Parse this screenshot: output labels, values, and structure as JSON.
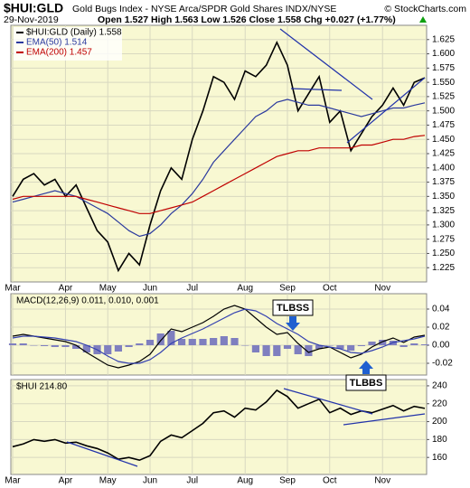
{
  "chart_data": [
    {
      "type": "line",
      "title": "$HUI:GLD",
      "subtitle": "Gold Bugs Index - NYSE Arca/SPDR Gold Shares INDX/NYSE",
      "credit": "© StockCharts.com",
      "date": "29-Nov-2019",
      "ohlc": "Open 1.527  High 1.563  Low 1.526  Close 1.558  Chg +0.027 (+1.77%)",
      "categories": [
        "Mar",
        null,
        null,
        null,
        null,
        "Apr",
        null,
        null,
        null,
        "May",
        null,
        null,
        null,
        "Jun",
        null,
        null,
        null,
        "Jul",
        null,
        null,
        null,
        null,
        "Aug",
        null,
        null,
        null,
        "Sep",
        null,
        null,
        null,
        "Oct",
        null,
        null,
        null,
        null,
        "Nov",
        null,
        null,
        null,
        null
      ],
      "series": [
        {
          "name": "$HUI:GLD (Daily) 1.558",
          "color": "#000000",
          "values": [
            1.35,
            1.38,
            1.39,
            1.37,
            1.38,
            1.35,
            1.37,
            1.33,
            1.29,
            1.27,
            1.22,
            1.25,
            1.23,
            1.3,
            1.36,
            1.4,
            1.38,
            1.45,
            1.5,
            1.56,
            1.55,
            1.52,
            1.57,
            1.56,
            1.58,
            1.62,
            1.58,
            1.5,
            1.53,
            1.56,
            1.48,
            1.5,
            1.43,
            1.46,
            1.49,
            1.51,
            1.54,
            1.51,
            1.55,
            1.558
          ]
        },
        {
          "name": "EMA(50) 1.514",
          "color": "#2b3a9e",
          "values": [
            1.34,
            1.345,
            1.35,
            1.355,
            1.36,
            1.355,
            1.35,
            1.34,
            1.33,
            1.32,
            1.305,
            1.29,
            1.28,
            1.285,
            1.3,
            1.32,
            1.335,
            1.355,
            1.38,
            1.41,
            1.43,
            1.45,
            1.47,
            1.49,
            1.5,
            1.515,
            1.52,
            1.515,
            1.51,
            1.51,
            1.505,
            1.5,
            1.495,
            1.49,
            1.495,
            1.5,
            1.505,
            1.505,
            1.51,
            1.514
          ]
        },
        {
          "name": "EMA(200) 1.457",
          "color": "#c00000",
          "values": [
            1.345,
            1.35,
            1.35,
            1.35,
            1.35,
            1.35,
            1.35,
            1.345,
            1.34,
            1.335,
            1.33,
            1.325,
            1.32,
            1.32,
            1.325,
            1.33,
            1.335,
            1.34,
            1.35,
            1.36,
            1.37,
            1.38,
            1.39,
            1.4,
            1.41,
            1.42,
            1.425,
            1.43,
            1.43,
            1.435,
            1.435,
            1.435,
            1.435,
            1.44,
            1.44,
            1.445,
            1.45,
            1.45,
            1.455,
            1.457
          ]
        }
      ],
      "ylim": [
        1.2,
        1.65
      ],
      "yticks": [
        1.225,
        {
          "value": 1.25,
          "label": "1.250"
        },
        1.275,
        {
          "value": 1.3,
          "label": "1.300"
        },
        1.325,
        {
          "value": 1.35,
          "label": "1.350"
        },
        1.375,
        {
          "value": 1.4,
          "label": "1.400"
        },
        1.425,
        {
          "value": 1.45,
          "label": "1.450"
        },
        1.475,
        {
          "value": 1.5,
          "label": "1.500"
        },
        1.525,
        {
          "value": 1.55,
          "label": "1.550"
        },
        1.575,
        {
          "value": 1.6,
          "label": "1.600"
        },
        1.625
      ],
      "grid": true
    },
    {
      "type": "macd",
      "label": "MACD(12,26,9) 0.011, 0.010, 0.001",
      "annotations": [
        "TLBSS",
        "TLBBS"
      ],
      "series": [
        {
          "color": "#000000",
          "style": "line",
          "values": [
            0.01,
            0.012,
            0.01,
            0.008,
            0.006,
            0.004,
            0.0,
            -0.008,
            -0.015,
            -0.022,
            -0.025,
            -0.022,
            -0.018,
            -0.01,
            0.005,
            0.018,
            0.015,
            0.02,
            0.025,
            0.032,
            0.04,
            0.044,
            0.04,
            0.03,
            0.02,
            0.012,
            0.014,
            0.002,
            -0.008,
            -0.004,
            -0.002,
            -0.008,
            -0.014,
            -0.01,
            -0.002,
            0.004,
            0.008,
            0.003,
            0.009,
            0.011
          ]
        },
        {
          "color": "#3340b0",
          "style": "line",
          "values": [
            0.008,
            0.01,
            0.01,
            0.009,
            0.008,
            0.006,
            0.004,
            0.0,
            -0.005,
            -0.012,
            -0.018,
            -0.02,
            -0.02,
            -0.016,
            -0.008,
            0.002,
            0.008,
            0.013,
            0.018,
            0.024,
            0.03,
            0.036,
            0.04,
            0.038,
            0.032,
            0.024,
            0.018,
            0.012,
            0.004,
            0.0,
            -0.002,
            -0.004,
            -0.008,
            -0.009,
            -0.006,
            -0.002,
            0.003,
            0.005,
            0.007,
            0.01
          ]
        },
        {
          "color": "#7f7fbf",
          "style": "histogram",
          "values": [
            0.002,
            0.002,
            0,
            -0.001,
            -0.002,
            -0.002,
            -0.004,
            -0.008,
            -0.01,
            -0.01,
            -0.007,
            -0.002,
            0.002,
            0.006,
            0.013,
            0.016,
            0.007,
            0.007,
            0.007,
            0.008,
            0.01,
            0.008,
            0,
            -0.008,
            -0.012,
            -0.012,
            -0.004,
            -0.01,
            -0.012,
            -0.004,
            0,
            -0.004,
            -0.006,
            -0.001,
            0.004,
            0.006,
            0.005,
            -0.002,
            0.002,
            0.001
          ]
        }
      ],
      "ylim": [
        -0.033,
        0.057
      ],
      "yticks": [
        0.04,
        0.02,
        {
          "value": 0,
          "label": "0.00"
        },
        -0.02
      ],
      "grid": true
    },
    {
      "type": "line",
      "series": [
        {
          "name": "$HUI 214.80",
          "color": "#000000",
          "values": [
            172,
            175,
            180,
            178,
            180,
            176,
            177,
            173,
            170,
            165,
            158,
            160,
            157,
            162,
            178,
            185,
            182,
            190,
            198,
            210,
            212,
            205,
            215,
            213,
            222,
            235,
            228,
            215,
            220,
            225,
            210,
            215,
            208,
            212,
            210,
            214,
            218,
            212,
            217,
            214.8
          ]
        }
      ],
      "ylim": [
        141,
        247
      ],
      "yticks": [
        240,
        220,
        200,
        180,
        160
      ],
      "grid": true
    }
  ]
}
